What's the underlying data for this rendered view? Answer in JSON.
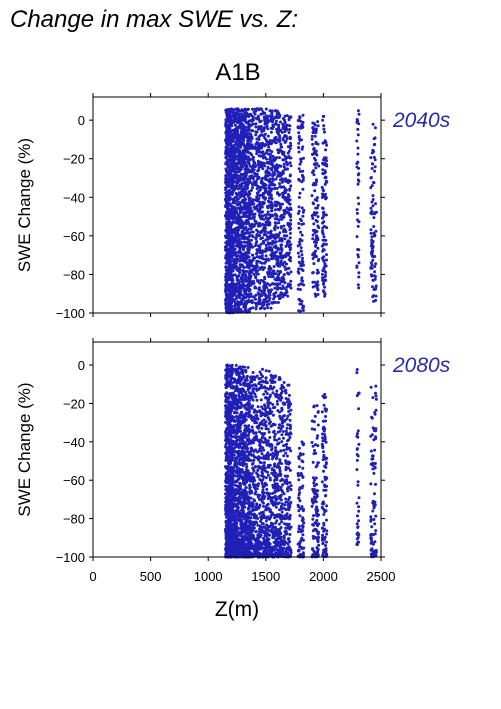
{
  "page_title": "Change in max SWE vs. Z:",
  "scenario": "A1B",
  "colors": {
    "points": "#2020b8",
    "period_label": "#2a2aa8",
    "axis": "#000000"
  },
  "chart_data": [
    {
      "type": "scatter",
      "title": "",
      "period": "2040s",
      "xlabel": "Z(m)",
      "ylabel": "SWE Change (%)",
      "xlim": [
        0,
        2500
      ],
      "ylim": [
        -100,
        12
      ],
      "xticks": [
        0,
        500,
        1000,
        1500,
        2000,
        2500
      ],
      "yticks": [
        0,
        -20,
        -40,
        -60,
        -80,
        -100
      ],
      "xtick_labels_shown": false,
      "grid": false,
      "bands": [
        {
          "x": [
            1150,
            1210
          ],
          "y": [
            -100,
            6
          ],
          "density": 700
        },
        {
          "x": [
            1210,
            1280
          ],
          "y": [
            -100,
            6
          ],
          "density": 520
        },
        {
          "x": [
            1280,
            1360
          ],
          "y": [
            -100,
            6
          ],
          "density": 560
        },
        {
          "x": [
            1360,
            1450
          ],
          "y": [
            -98,
            6
          ],
          "density": 330
        },
        {
          "x": [
            1450,
            1550
          ],
          "y": [
            -98,
            6
          ],
          "density": 360
        },
        {
          "x": [
            1550,
            1640
          ],
          "y": [
            -95,
            5
          ],
          "density": 300
        },
        {
          "x": [
            1640,
            1720
          ],
          "y": [
            -92,
            3
          ],
          "density": 220
        },
        {
          "x": [
            1780,
            1830
          ],
          "y": [
            -100,
            3
          ],
          "density": 110
        },
        {
          "x": [
            1900,
            1960
          ],
          "y": [
            -92,
            0
          ],
          "density": 120
        },
        {
          "x": [
            1990,
            2030
          ],
          "y": [
            -92,
            3
          ],
          "density": 110
        },
        {
          "x": [
            2290,
            2310
          ],
          "y": [
            -88,
            6
          ],
          "density": 40
        },
        {
          "x": [
            2410,
            2460
          ],
          "y": [
            -95,
            0
          ],
          "density": 90
        }
      ]
    },
    {
      "type": "scatter",
      "title": "",
      "period": "2080s",
      "xlabel": "Z(m)",
      "ylabel": "SWE Change (%)",
      "xlim": [
        0,
        2500
      ],
      "ylim": [
        -100,
        12
      ],
      "xticks": [
        0,
        500,
        1000,
        1500,
        2000,
        2500
      ],
      "yticks": [
        0,
        -20,
        -40,
        -60,
        -80,
        -100
      ],
      "xtick_labels_shown": true,
      "grid": false,
      "bands": [
        {
          "x": [
            1150,
            1210
          ],
          "y": [
            -100,
            0
          ],
          "density": 720
        },
        {
          "x": [
            1210,
            1280
          ],
          "y": [
            -100,
            0
          ],
          "density": 520
        },
        {
          "x": [
            1280,
            1360
          ],
          "y": [
            -100,
            0
          ],
          "density": 560
        },
        {
          "x": [
            1360,
            1450
          ],
          "y": [
            -100,
            -2
          ],
          "density": 330
        },
        {
          "x": [
            1450,
            1550
          ],
          "y": [
            -100,
            -2
          ],
          "density": 360
        },
        {
          "x": [
            1550,
            1640
          ],
          "y": [
            -100,
            -5
          ],
          "density": 300
        },
        {
          "x": [
            1640,
            1720
          ],
          "y": [
            -100,
            -8
          ],
          "density": 220
        },
        {
          "x": [
            1780,
            1830
          ],
          "y": [
            -100,
            -40
          ],
          "density": 90
        },
        {
          "x": [
            1900,
            1960
          ],
          "y": [
            -100,
            -20
          ],
          "density": 120
        },
        {
          "x": [
            1990,
            2030
          ],
          "y": [
            -100,
            -15
          ],
          "density": 110
        },
        {
          "x": [
            2290,
            2310
          ],
          "y": [
            -95,
            0
          ],
          "density": 40
        },
        {
          "x": [
            2410,
            2460
          ],
          "y": [
            -100,
            -10
          ],
          "density": 90
        }
      ]
    }
  ]
}
